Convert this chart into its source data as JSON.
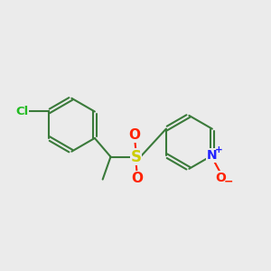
{
  "background_color": "#ebebeb",
  "bond_color": "#3a7a3a",
  "bond_width": 1.5,
  "atom_colors": {
    "Cl": "#22bb22",
    "S": "#cccc00",
    "O": "#ff2200",
    "N": "#2222ff",
    "C": "#3a7a3a"
  },
  "figsize": [
    3.0,
    3.0
  ],
  "dpi": 100
}
